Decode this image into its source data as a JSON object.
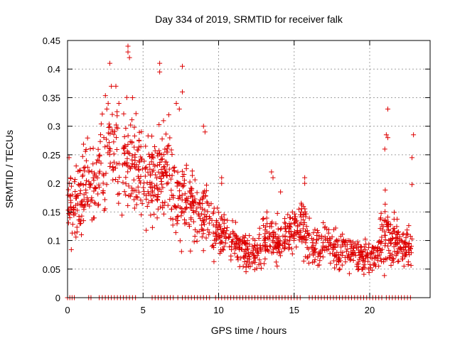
{
  "chart_data": {
    "type": "scatter",
    "title": "Day 334 of 2019, SRMTID for receiver falk",
    "xlabel": "GPS time / hours",
    "ylabel": "SRMTID / TECUs",
    "xlim": [
      0,
      24
    ],
    "ylim": [
      0,
      0.45
    ],
    "xticks": [
      0,
      5,
      10,
      15,
      20
    ],
    "yticks": [
      0,
      0.05,
      0.1,
      0.15,
      0.2,
      0.25,
      0.3,
      0.35,
      0.4,
      0.45
    ],
    "xtick_labels": [
      "0",
      "5",
      "10",
      "15",
      "20"
    ],
    "ytick_labels": [
      "0",
      "0.05",
      "0.1",
      "0.15",
      "0.2",
      "0.25",
      "0.3",
      "0.35",
      "0.4",
      "0.45"
    ],
    "grid": true,
    "marker": "+",
    "color": "#dd0000",
    "envelope": [
      [
        0.0,
        0.15,
        0.06
      ],
      [
        0.5,
        0.16,
        0.06
      ],
      [
        1.0,
        0.18,
        0.06
      ],
      [
        1.5,
        0.2,
        0.06
      ],
      [
        2.0,
        0.21,
        0.07
      ],
      [
        2.5,
        0.25,
        0.08
      ],
      [
        3.0,
        0.27,
        0.08
      ],
      [
        3.5,
        0.24,
        0.08
      ],
      [
        4.0,
        0.24,
        0.08
      ],
      [
        4.5,
        0.23,
        0.08
      ],
      [
        5.0,
        0.21,
        0.07
      ],
      [
        5.5,
        0.2,
        0.07
      ],
      [
        6.0,
        0.22,
        0.07
      ],
      [
        6.5,
        0.22,
        0.07
      ],
      [
        7.0,
        0.19,
        0.07
      ],
      [
        7.5,
        0.17,
        0.07
      ],
      [
        8.0,
        0.16,
        0.06
      ],
      [
        8.5,
        0.16,
        0.06
      ],
      [
        9.0,
        0.15,
        0.06
      ],
      [
        9.5,
        0.13,
        0.05
      ],
      [
        10.0,
        0.11,
        0.04
      ],
      [
        10.5,
        0.11,
        0.04
      ],
      [
        11.0,
        0.1,
        0.04
      ],
      [
        11.5,
        0.08,
        0.03
      ],
      [
        12.0,
        0.08,
        0.03
      ],
      [
        12.5,
        0.08,
        0.03
      ],
      [
        13.0,
        0.1,
        0.035
      ],
      [
        13.5,
        0.11,
        0.035
      ],
      [
        14.0,
        0.1,
        0.035
      ],
      [
        14.5,
        0.11,
        0.035
      ],
      [
        15.0,
        0.12,
        0.04
      ],
      [
        15.5,
        0.13,
        0.04
      ],
      [
        16.0,
        0.09,
        0.035
      ],
      [
        16.5,
        0.08,
        0.03
      ],
      [
        17.0,
        0.09,
        0.03
      ],
      [
        17.5,
        0.09,
        0.03
      ],
      [
        18.0,
        0.08,
        0.03
      ],
      [
        18.5,
        0.08,
        0.03
      ],
      [
        19.0,
        0.08,
        0.025
      ],
      [
        19.5,
        0.07,
        0.025
      ],
      [
        20.0,
        0.07,
        0.025
      ],
      [
        20.5,
        0.08,
        0.025
      ],
      [
        21.0,
        0.12,
        0.06
      ],
      [
        21.5,
        0.1,
        0.04
      ],
      [
        22.0,
        0.09,
        0.035
      ],
      [
        22.5,
        0.09,
        0.035
      ],
      [
        22.8,
        0.09,
        0.035
      ]
    ],
    "outliers": [
      [
        4.0,
        0.44
      ],
      [
        4.0,
        0.43
      ],
      [
        4.1,
        0.42
      ],
      [
        2.8,
        0.41
      ],
      [
        2.9,
        0.37
      ],
      [
        6.1,
        0.41
      ],
      [
        6.1,
        0.395
      ],
      [
        7.6,
        0.405
      ],
      [
        7.6,
        0.36
      ],
      [
        3.2,
        0.37
      ],
      [
        3.4,
        0.34
      ],
      [
        4.3,
        0.35
      ],
      [
        2.6,
        0.33
      ],
      [
        7.2,
        0.34
      ],
      [
        7.4,
        0.33
      ],
      [
        6.7,
        0.32
      ],
      [
        21.2,
        0.33
      ],
      [
        21.1,
        0.285
      ],
      [
        21.2,
        0.28
      ],
      [
        22.9,
        0.285
      ],
      [
        22.8,
        0.245
      ],
      [
        22.8,
        0.198
      ],
      [
        21.0,
        0.26
      ],
      [
        15.7,
        0.21
      ],
      [
        15.7,
        0.2
      ],
      [
        13.5,
        0.22
      ],
      [
        13.6,
        0.21
      ],
      [
        10.2,
        0.21
      ],
      [
        10.2,
        0.2
      ],
      [
        14.1,
        0.185
      ],
      [
        9.0,
        0.3
      ],
      [
        9.1,
        0.29
      ],
      [
        1.0,
        0.247
      ],
      [
        0.1,
        0.245
      ],
      [
        0.2,
        0.21
      ]
    ],
    "zero_points_x": [
      0.0,
      0.15,
      0.3,
      0.45,
      1.4,
      1.55,
      2.1,
      2.3,
      2.5,
      2.7,
      2.9,
      3.1,
      3.3,
      3.5,
      3.7,
      3.9,
      4.1,
      4.3,
      4.5,
      5.6,
      5.8,
      6.0,
      6.2,
      6.4,
      6.6,
      6.8,
      7.0,
      7.3,
      7.6,
      7.8,
      8.0,
      8.2,
      8.4,
      8.6,
      8.8,
      9.0,
      9.2,
      9.4,
      9.8,
      10.0,
      10.2,
      10.4,
      10.6,
      10.8,
      11.0,
      11.2,
      11.4,
      11.6,
      11.8,
      12.0,
      12.2,
      12.4,
      12.6,
      12.8,
      13.0,
      13.2,
      13.4,
      13.6,
      13.8,
      14.0,
      14.2,
      14.4,
      14.6,
      14.8,
      15.0,
      15.2,
      15.4,
      16.0,
      16.2,
      16.4,
      16.6,
      16.8,
      17.0,
      17.2,
      17.4,
      17.6,
      17.8,
      18.0,
      18.2,
      18.4,
      18.6,
      18.8,
      19.0,
      19.2,
      19.4,
      19.6,
      19.8,
      20.0,
      20.2,
      20.4,
      20.6,
      20.8,
      21.1,
      21.3,
      21.5,
      21.7,
      21.9,
      22.1,
      22.3,
      22.5,
      22.7
    ]
  }
}
